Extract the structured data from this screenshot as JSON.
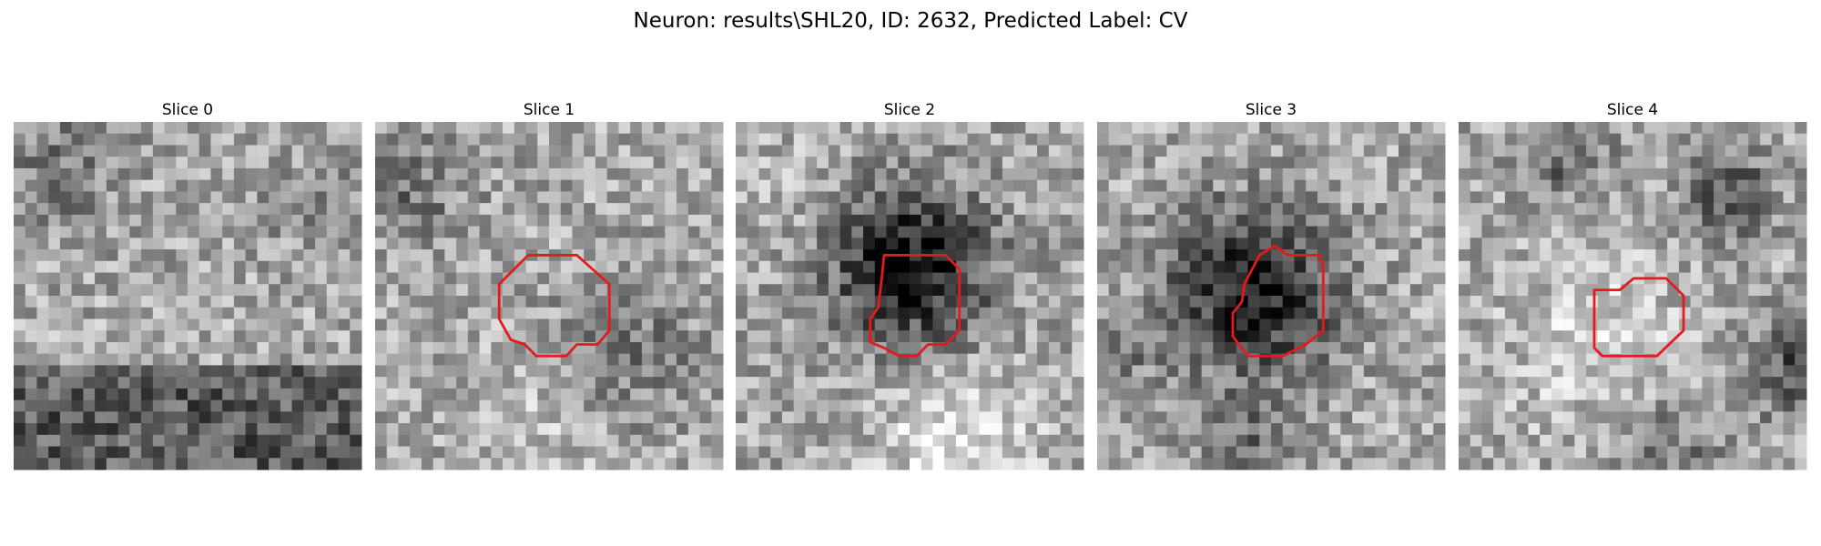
{
  "title": "Neuron: results\\SHL20, ID: 2632, Predicted Label: CV",
  "panels": [
    {
      "title": "Slice 0"
    },
    {
      "title": "Slice 1"
    },
    {
      "title": "Slice 2"
    },
    {
      "title": "Slice 3"
    },
    {
      "title": "Slice 4"
    }
  ]
}
